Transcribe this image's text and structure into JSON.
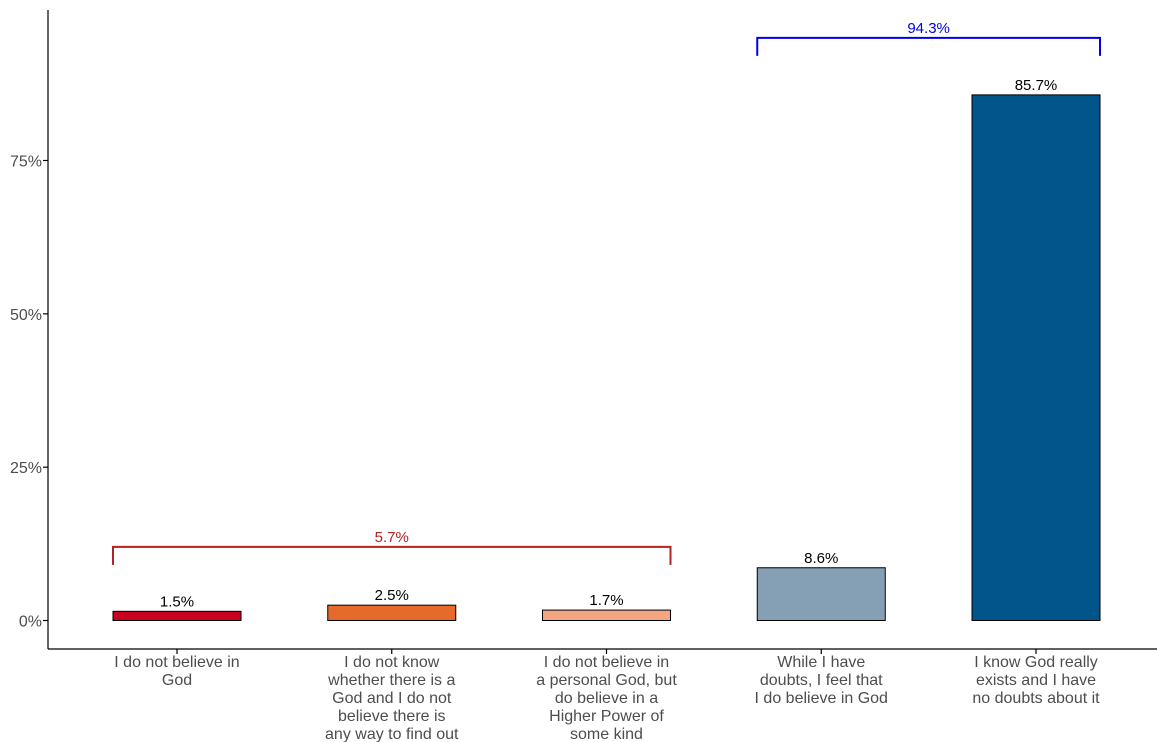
{
  "chart_data": {
    "type": "bar",
    "title": "",
    "xlabel": "",
    "ylabel": "",
    "ylim": [
      0,
      100
    ],
    "yticks": [
      0,
      25,
      50,
      75
    ],
    "ytick_labels": [
      "0%",
      "25%",
      "50%",
      "75%"
    ],
    "categories": [
      [
        "I do not believe in",
        "God"
      ],
      [
        "I do not know",
        "whether there is a",
        "God and I do not",
        "believe there is",
        "any way to find out"
      ],
      [
        "I do not believe in",
        "a personal God, but",
        "do believe in a",
        "Higher Power of",
        "some kind"
      ],
      [
        "While I have",
        "doubts, I feel that",
        "I do believe in God"
      ],
      [
        "I know God really",
        "exists and I have",
        "no doubts about it"
      ]
    ],
    "values": [
      1.5,
      2.5,
      1.7,
      8.6,
      85.7
    ],
    "labels": [
      "1.5%",
      "2.5%",
      "1.7%",
      "8.6%",
      "85.7%"
    ],
    "colors": [
      "#ca0020",
      "#e66a2c",
      "#f4a582",
      "#85a0b4",
      "#02558b"
    ],
    "grid": false,
    "brackets": [
      {
        "from": 0,
        "to": 2,
        "label": "5.7%",
        "color": "#b22222",
        "level": 12
      },
      {
        "from": 3,
        "to": 4,
        "label": "94.3%",
        "color": "#0000ee",
        "level": 95
      }
    ]
  }
}
